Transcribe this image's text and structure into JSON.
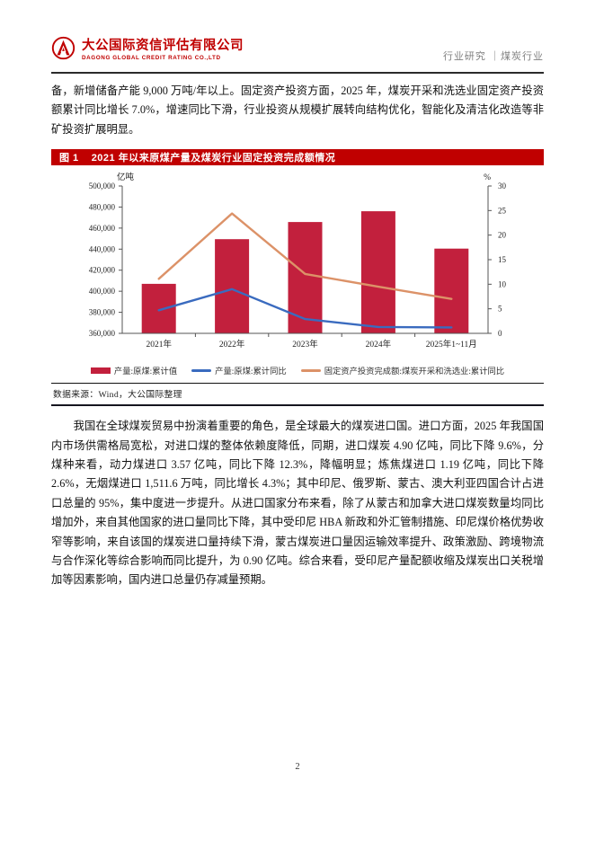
{
  "header": {
    "company_zh": "大公国际资信评估有限公司",
    "company_en": "DAGONG GLOBAL CREDIT RATING CO.,LTD",
    "right_text": "行业研究 ｜煤炭行业",
    "brand_color": "#c00000"
  },
  "body": {
    "paragraph1": "备，新增储备产能 9,000 万吨/年以上。固定资产投资方面，2025 年，煤炭开采和洗选业固定资产投资额累计同比增长 7.0%，增速同比下滑，行业投资从规模扩展转向结构优化，智能化及清洁化改造等非矿投资扩展明显。",
    "paragraph2": "我国在全球煤炭贸易中扮演着重要的角色，是全球最大的煤炭进口国。进口方面，2025 年我国国内市场供需格局宽松，对进口煤的整体依赖度降低，同期，进口煤炭 4.90 亿吨，同比下降 9.6%，分煤种来看，动力煤进口 3.57 亿吨，同比下降 12.3%，降幅明显；炼焦煤进口 1.19 亿吨，同比下降 2.6%，无烟煤进口 1,511.6 万吨，同比增长 4.3%；其中印尼、俄罗斯、蒙古、澳大利亚四国合计占进口总量的 95%，集中度进一步提升。从进口国家分布来看，除了从蒙古和加拿大进口煤炭数量均同比增加外，来自其他国家的进口量同比下降，其中受印尼 HBA 新政和外汇管制措施、印尼煤价格优势收窄等影响，来自该国的煤炭进口量持续下滑，蒙古煤炭进口量因运输效率提升、政策激励、跨境物流与合作深化等综合影响而同比提升，为 0.90 亿吨。综合来看，受印尼产量配额收缩及煤炭出口关税增加等因素影响，国内进口总量仍存减量预期。"
  },
  "figure": {
    "label": "图 1",
    "title": "2021 年以来原煤产量及煤炭行业固定投资完成额情况",
    "titlebar_color": "#c00000",
    "source": "数据来源：Wind，大公国际整理"
  },
  "chart_data": {
    "type": "bar",
    "combo": "bar+line",
    "categories": [
      "2021年",
      "2022年",
      "2023年",
      "2024年",
      "2025年1~11月"
    ],
    "left_axis": {
      "unit": "亿吨",
      "min": 360000,
      "max": 500000,
      "step": 20000
    },
    "right_axis": {
      "unit": "%",
      "min": 0,
      "max": 30,
      "step": 5
    },
    "series": [
      {
        "name": "产量:原煤:累计值",
        "type": "bar",
        "axis": "left",
        "color": "#c2203d",
        "values": [
          407000,
          449500,
          465800,
          476000,
          440500
        ]
      },
      {
        "name": "产量:原煤:累计同比",
        "type": "line",
        "axis": "right",
        "color": "#3a6bbf",
        "values": [
          4.7,
          9.0,
          2.9,
          1.3,
          1.2
        ]
      },
      {
        "name": "固定资产投资完成额:煤炭开采和洗选业:累计同比",
        "type": "line",
        "axis": "right",
        "color": "#dc9268",
        "values": [
          11.1,
          24.4,
          12.1,
          9.5,
          7.0
        ]
      }
    ],
    "legend_position": "bottom",
    "grid": "off"
  },
  "footer": {
    "page_number": "2"
  }
}
